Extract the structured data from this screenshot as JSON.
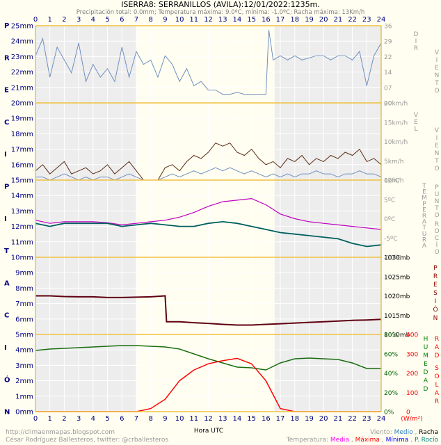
{
  "title": "ISERRA8: SERRANILLOS (AVILA):12/01/2022:1235m.",
  "subtitle": "Precipitación total: 0.0mm; Temperatura máxima: 9.0ºC, mínima: -1.0ºC; Racha máxima: 13Km/h",
  "left_vertical_label": [
    "P",
    "R",
    "E",
    "C",
    "I",
    "P",
    "I",
    "T",
    "A",
    "C",
    "I",
    "Ó",
    "N"
  ],
  "precip_ticks": [
    "25mm",
    "24mm",
    "23mm",
    "22mm",
    "21mm",
    "20mm",
    "19mm",
    "18mm",
    "17mm",
    "16mm",
    "15mm",
    "14mm",
    "13mm",
    "12mm",
    "11mm",
    "10mm",
    "9mm",
    "8mm",
    "7mm",
    "6mm",
    "5mm",
    "4mm",
    "3mm",
    "2mm",
    "1mm",
    "0mm"
  ],
  "hour_ticks": [
    "0",
    "1",
    "2",
    "3",
    "4",
    "5",
    "6",
    "7",
    "8",
    "9",
    "10",
    "11",
    "12",
    "13",
    "14",
    "15",
    "16",
    "17",
    "18",
    "19",
    "20",
    "21",
    "22",
    "23",
    "24"
  ],
  "xlabel": "Hora UTC",
  "footer_left_1": "http://climaenmapas.blogspot.com",
  "footer_left_2": "César Rodríguez Ballesteros, twitter: @crballesteros",
  "wind_legend": {
    "prefix": "Viento:",
    "medio": "Medio",
    "sep": ", ",
    "racha": "Racha"
  },
  "temp_legend": {
    "prefix": "Temperatura:",
    "media": "Media",
    "maxima": "Máxima",
    "minima": "Mínima",
    "rocio": "P. Rocío"
  },
  "colors": {
    "background": "#fffef0",
    "night_shade": "#ededed",
    "border": "#f0c040",
    "axis_text": "#000080",
    "wind_dir": "#6f8fc0",
    "gust": "#5a2a10",
    "temp_max": "#c000c0",
    "dew": "#006060",
    "pressure": "#600010",
    "humidity": "#1a6e10",
    "radiation": "#ff0000",
    "label_gray": "#9a9a9a",
    "link": "#0000c0",
    "media": "#ff00ff",
    "maxima": "#ff0000",
    "minima": "#0000ff",
    "rocio": "#008080",
    "medio": "#3080c0",
    "racha": "#000000"
  },
  "chart_data": [
    {
      "type": "line",
      "name_label": "DIR VIENTO",
      "right_ticks": [
        "36",
        "29",
        "22",
        "14",
        "07",
        "00"
      ],
      "ylim": [
        0,
        36
      ],
      "x": [
        0,
        0.5,
        1,
        1.5,
        2,
        2.5,
        3,
        3.5,
        4,
        4.5,
        5,
        5.5,
        6,
        6.5,
        7,
        7.5,
        8,
        8.5,
        9,
        9.5,
        10,
        10.5,
        11,
        11.5,
        12,
        12.5,
        13,
        13.5,
        14,
        14.5,
        15,
        15.5,
        16,
        16.2,
        16.5,
        17,
        17.5,
        18,
        18.5,
        19,
        19.5,
        20,
        20.5,
        21,
        21.5,
        22,
        22.5,
        23,
        23.5,
        24
      ],
      "series": [
        {
          "values": [
            22,
            30,
            12,
            26,
            20,
            14,
            28,
            10,
            18,
            12,
            16,
            10,
            26,
            12,
            24,
            18,
            20,
            12,
            22,
            18,
            10,
            16,
            8,
            10,
            6,
            6,
            4,
            4,
            5,
            4,
            4,
            4,
            4,
            34,
            20,
            22,
            20,
            22,
            20,
            21,
            22,
            22,
            20,
            22,
            22,
            20,
            24,
            8,
            22,
            28
          ]
        }
      ]
    },
    {
      "type": "line",
      "name_label": "VEL VIENTO",
      "right_ticks": [
        "20km/h",
        "15km/h",
        "10km/h",
        "5km/h",
        "0km/h"
      ],
      "ylim": [
        0,
        25
      ],
      "x": [
        0,
        0.5,
        1,
        1.5,
        2,
        2.5,
        3,
        3.5,
        4,
        4.5,
        5,
        5.5,
        6,
        6.5,
        7,
        7.5,
        8,
        8.5,
        9,
        9.5,
        10,
        10.5,
        11,
        11.5,
        12,
        12.5,
        13,
        13.5,
        14,
        14.5,
        15,
        15.5,
        16,
        16.5,
        17,
        17.5,
        18,
        18.5,
        19,
        19.5,
        20,
        20.5,
        21,
        21.5,
        22,
        22.5,
        23,
        23.5,
        24
      ],
      "series": [
        {
          "name": "Racha",
          "values": [
            3,
            5,
            2,
            4,
            6,
            2,
            3,
            4,
            2,
            3,
            5,
            2,
            4,
            6,
            3,
            0,
            0,
            0,
            4,
            5,
            3,
            6,
            8,
            7,
            9,
            12,
            11,
            12,
            9,
            8,
            10,
            7,
            5,
            6,
            4,
            7,
            6,
            8,
            5,
            7,
            6,
            8,
            7,
            9,
            8,
            10,
            6,
            7,
            5
          ]
        },
        {
          "name": "Medio",
          "values": [
            1,
            1,
            0,
            1,
            2,
            1,
            0,
            1,
            0,
            1,
            1,
            0,
            1,
            2,
            1,
            0,
            0,
            0,
            1,
            2,
            1,
            2,
            3,
            2,
            3,
            4,
            3,
            4,
            3,
            2,
            3,
            2,
            1,
            2,
            1,
            2,
            1,
            2,
            2,
            3,
            2,
            2,
            1,
            2,
            2,
            3,
            2,
            2,
            1
          ]
        }
      ]
    },
    {
      "type": "line",
      "name_label": "TEMPERATURA / PUNTO ROCÍO",
      "right_ticks": [
        "10ºC",
        "5ºC",
        "0ºC",
        "-5ºC",
        "-10ºC"
      ],
      "ylim": [
        -10,
        15
      ],
      "x": [
        0,
        1,
        2,
        3,
        4,
        5,
        6,
        7,
        8,
        9,
        10,
        11,
        12,
        13,
        14,
        15,
        16,
        17,
        18,
        19,
        20,
        21,
        22,
        23,
        24
      ],
      "series": [
        {
          "name": "Máxima",
          "values": [
            2,
            1,
            1.5,
            1.5,
            1.5,
            1.2,
            0.5,
            1,
            1.5,
            2,
            3,
            4.5,
            6.5,
            8,
            8.5,
            9,
            7,
            4,
            2.5,
            1.5,
            1,
            0.5,
            0,
            -0.5,
            -1
          ]
        },
        {
          "name": "P. Rocío",
          "values": [
            1,
            0,
            1,
            1,
            1,
            1,
            0,
            0.5,
            1,
            0.5,
            0,
            0,
            1,
            1.5,
            1,
            0,
            -1,
            -2,
            -2.5,
            -3,
            -3.5,
            -4,
            -5.5,
            -6.5,
            -6
          ]
        }
      ]
    },
    {
      "type": "line",
      "name_label": "PRESIÓN",
      "right_ticks": [
        "1030mb",
        "1025mb",
        "1020mb",
        "1015mb",
        "1010mb"
      ],
      "ylim": [
        1010,
        1033
      ],
      "x": [
        0,
        1,
        2,
        3,
        4,
        5,
        6,
        7,
        8,
        9,
        9.1,
        10,
        11,
        12,
        13,
        14,
        15,
        16,
        17,
        18,
        19,
        20,
        21,
        22,
        23,
        24
      ],
      "series": [
        {
          "values": [
            1021.5,
            1021.5,
            1021.3,
            1021.2,
            1021.2,
            1021,
            1021,
            1021.1,
            1021.2,
            1021.5,
            1013.8,
            1013.8,
            1013.5,
            1013.3,
            1013,
            1012.8,
            1012.8,
            1013,
            1013.2,
            1013.4,
            1013.6,
            1013.8,
            1014,
            1014.2,
            1014.3,
            1014.5
          ]
        }
      ]
    },
    {
      "type": "line",
      "name_label": "HUMEDAD / RAD SOLAR",
      "right_ticks_humidity": [
        "80%",
        "60%",
        "40%",
        "20%",
        "0%"
      ],
      "right_ticks_radiation": [
        "400",
        "300",
        "200",
        "100",
        "0"
      ],
      "radiation_unit": "(W/m²)",
      "x": [
        0,
        1,
        2,
        3,
        4,
        5,
        6,
        7,
        8,
        9,
        10,
        11,
        12,
        13,
        14,
        15,
        16,
        17,
        18,
        19,
        20,
        21,
        22,
        23,
        24
      ],
      "series": [
        {
          "name": "HUMEDAD",
          "values": [
            88,
            90,
            91,
            92,
            93,
            94,
            95,
            95,
            94,
            93,
            90,
            83,
            76,
            70,
            64,
            63,
            60,
            70,
            76,
            77,
            76,
            75,
            70,
            62,
            62
          ]
        },
        {
          "name": "RAD SOLAR",
          "values": [
            0,
            0,
            0,
            0,
            0,
            0,
            0,
            0,
            20,
            80,
            200,
            270,
            310,
            330,
            345,
            310,
            200,
            20,
            0,
            0,
            0,
            0,
            0,
            0,
            0
          ]
        }
      ]
    }
  ]
}
